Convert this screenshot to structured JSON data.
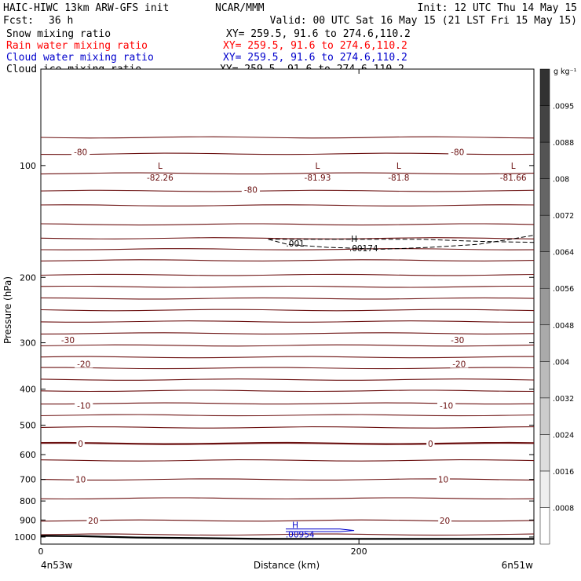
{
  "header": {
    "title_left": "HAIC-HIWC 13km ARW-GFS init",
    "center": "NCAR/MMM",
    "init": "Init: 12 UTC Thu 14 May 15",
    "fcst_label": "Fcst:",
    "fcst_value": "36 h",
    "valid": "Valid: 00 UTC Sat 16 May 15 (21 LST Fri 15 May 15)"
  },
  "fields": [
    {
      "name": "Snow mixing ratio",
      "xy": "XY= 259.5, 91.6 to 274.6,110.2",
      "color": "#000000"
    },
    {
      "name": "Rain water mixing ratio",
      "xy": "XY= 259.5, 91.6 to 274.6,110.2",
      "color": "#ff0000"
    },
    {
      "name": "Cloud water mixing ratio",
      "xy": "XY= 259.5, 91.6 to 274.6,110.2",
      "color": "#0000cc"
    },
    {
      "name": "Cloud ice mixing ratio",
      "xy": "XY= 259.5, 91.6 to 274.6,110.2",
      "color": "#000000"
    }
  ],
  "colors": {
    "temperature_contour": "#6b1010",
    "cloud_water": "#0000cc",
    "snow": "#000000",
    "terrain": "#000000"
  },
  "chart_data": {
    "type": "contour-cross-section",
    "ylabel": "Pressure (hPa)",
    "xlabel": "Distance (km)",
    "x_left_label": "4n53w",
    "x_right_label": "6n51w",
    "xlim": [
      0,
      310
    ],
    "ylim": [
      1045,
      55
    ],
    "y_scale": "log-pressure",
    "x_ticks": [
      0,
      200
    ],
    "y_ticks": [
      100,
      200,
      300,
      400,
      500,
      600,
      700,
      800,
      900,
      1000
    ],
    "temperature_labels": [
      {
        "text": "-80",
        "x": 25,
        "p": 92
      },
      {
        "text": "-80",
        "x": 132,
        "p": 116
      },
      {
        "text": "-80",
        "x": 262,
        "p": 92
      },
      {
        "text": "-30",
        "x": 17,
        "p": 295
      },
      {
        "text": "-30",
        "x": 262,
        "p": 295
      },
      {
        "text": "-20",
        "x": 27,
        "p": 342
      },
      {
        "text": "-20",
        "x": 263,
        "p": 342
      },
      {
        "text": "-10",
        "x": 27,
        "p": 443
      },
      {
        "text": "-10",
        "x": 255,
        "p": 443
      },
      {
        "text": "0",
        "x": 25,
        "p": 560
      },
      {
        "text": "0",
        "x": 245,
        "p": 560
      },
      {
        "text": "10",
        "x": 25,
        "p": 700
      },
      {
        "text": "10",
        "x": 253,
        "p": 700
      },
      {
        "text": "20",
        "x": 33,
        "p": 903
      },
      {
        "text": "20",
        "x": 254,
        "p": 903
      }
    ],
    "extrema_labels": [
      {
        "symbol": "L",
        "value": "-82.26",
        "x": 75,
        "p": 103
      },
      {
        "symbol": "L",
        "value": "-81.93",
        "x": 174,
        "p": 103
      },
      {
        "symbol": "L",
        "value": "-81.8",
        "x": 225,
        "p": 103
      },
      {
        "symbol": "L",
        "value": "-81.66",
        "x": 297,
        "p": 103
      }
    ],
    "cloud_ice": {
      "min_label": ".001",
      "max_symbol": "H",
      "max_value": ".00174",
      "max_x": 197,
      "max_p": 163
    },
    "cloud_water": {
      "max_symbol": "H",
      "max_value": ".00954",
      "x": 160,
      "p": 960
    },
    "temperature_isotherm_pressures": [
      84,
      93,
      105,
      117,
      128,
      144,
      157,
      168,
      180,
      197,
      212,
      228,
      245,
      263,
      283,
      305,
      328,
      351,
      377,
      404,
      437,
      470,
      507,
      560,
      622,
      700,
      787,
      903,
      985
    ],
    "colorbar": {
      "unit": "g kg⁻¹",
      "ticks": [
        ".0008",
        ".0016",
        ".0024",
        ".0032",
        ".004",
        ".0048",
        ".0056",
        ".0064",
        ".0072",
        ".008",
        ".0088",
        ".0095"
      ]
    }
  }
}
